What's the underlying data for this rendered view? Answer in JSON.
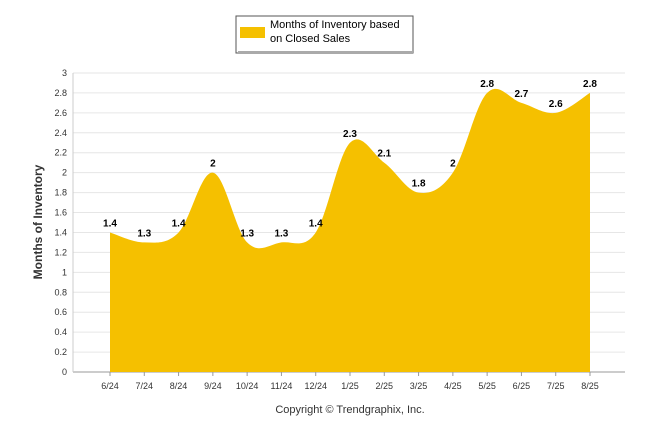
{
  "chart_data": {
    "type": "area",
    "categories": [
      "6/24",
      "7/24",
      "8/24",
      "9/24",
      "10/24",
      "11/24",
      "12/24",
      "1/25",
      "2/25",
      "3/25",
      "4/25",
      "5/25",
      "6/25",
      "7/25",
      "8/25"
    ],
    "series": [
      {
        "name": "Months of Inventory based on Closed Sales",
        "values": [
          1.4,
          1.3,
          1.4,
          2,
          1.3,
          1.3,
          1.4,
          2.3,
          2.1,
          1.8,
          2,
          2.8,
          2.7,
          2.6,
          2.8
        ],
        "color": "#F5C000"
      }
    ],
    "ylabel": "Months of Inventory",
    "xlabel": "",
    "ylim": [
      0,
      3
    ],
    "yticks": [
      "0",
      "0.2",
      "0.4",
      "0.6",
      "0.8",
      "1",
      "1.2",
      "1.4",
      "1.6",
      "1.8",
      "2",
      "2.2",
      "2.4",
      "2.6",
      "2.8",
      "3"
    ],
    "grid": true,
    "legend_position": "top-center",
    "data_labels": [
      "1.4",
      "1.3",
      "1.4",
      "2",
      "1.3",
      "1.3",
      "1.4",
      "2.3",
      "2.1",
      "1.8",
      "2",
      "2.8",
      "2.7",
      "2.6",
      "2.8"
    ]
  },
  "legend": {
    "line1": "Months of Inventory based",
    "line2": "on Closed Sales"
  },
  "footer": {
    "copyright": "Copyright © Trendgraphix, Inc."
  }
}
